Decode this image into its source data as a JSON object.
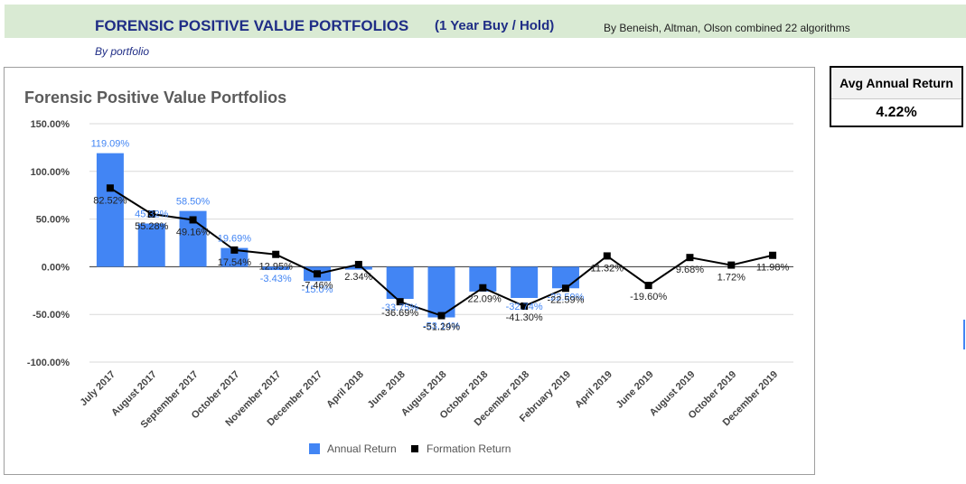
{
  "header": {
    "title": "FORENSIC POSITIVE VALUE PORTFOLIOS",
    "hold_period": "(1 Year Buy / Hold)",
    "byline": "By Beneish, Altman, Olson combined 22 algorithms",
    "subtitle": "By portfolio"
  },
  "summary": {
    "label": "Avg Annual Return",
    "value": "4.22%"
  },
  "colors": {
    "annual": "#4285f4",
    "formation": "#000000",
    "title": "#1f2d86",
    "header_band": "#d9ead3"
  },
  "chart_data": {
    "type": "bar",
    "title": "Forensic Positive Value Portfolios",
    "xlabel": "",
    "ylabel": "",
    "ylim": [
      -100,
      150
    ],
    "yticks": [
      150,
      100,
      50,
      0,
      -50,
      -100
    ],
    "ytick_labels": [
      "150.00%",
      "100.00%",
      "50.00%",
      "0.00%",
      "-50.00%",
      "-100.00%"
    ],
    "grid": true,
    "legend_position": "bottom",
    "categories": [
      "July 2017",
      "August 2017",
      "September 2017",
      "October 2017",
      "November 2017",
      "December 2017",
      "April 2018",
      "June 2018",
      "August 2018",
      "October 2018",
      "December 2018",
      "February 2019",
      "April 2019",
      "June 2019",
      "August 2019",
      "October 2019",
      "December 2019"
    ],
    "series": [
      {
        "name": "Annual Return",
        "type": "bar",
        "color": "#4285f4",
        "values": [
          119.09,
          45.32,
          58.5,
          19.69,
          -3.43,
          -15.0,
          -3.0,
          -33.75,
          -53.14,
          -26.0,
          -32.74,
          -22.59,
          null,
          null,
          null,
          null,
          null
        ],
        "labels": [
          "119.09%",
          "45.32%",
          "58.50%",
          "19.69%",
          "-3.43%",
          "-15.0%",
          "",
          "-33.75%",
          "-53.14%",
          "",
          "-32.74%",
          "-22.59%",
          "",
          "",
          "",
          "",
          ""
        ]
      },
      {
        "name": "Formation Return",
        "type": "line",
        "color": "#000000",
        "values": [
          82.52,
          55.28,
          49.16,
          17.54,
          12.95,
          -7.46,
          2.34,
          -36.69,
          -51.29,
          -22.09,
          -41.3,
          -22.59,
          11.32,
          -19.6,
          9.68,
          1.72,
          11.98
        ],
        "labels": [
          "82.52%",
          "55.28%",
          "49.16%",
          "17.54%",
          "12.95%",
          "-7.46%",
          "2.34%",
          "-36.69%",
          "-51.29%",
          "-22.09%",
          "-41.30%",
          "-22.59%",
          "11.32%",
          "-19.60%",
          "9.68%",
          "1.72%",
          "11.98%"
        ]
      }
    ]
  }
}
